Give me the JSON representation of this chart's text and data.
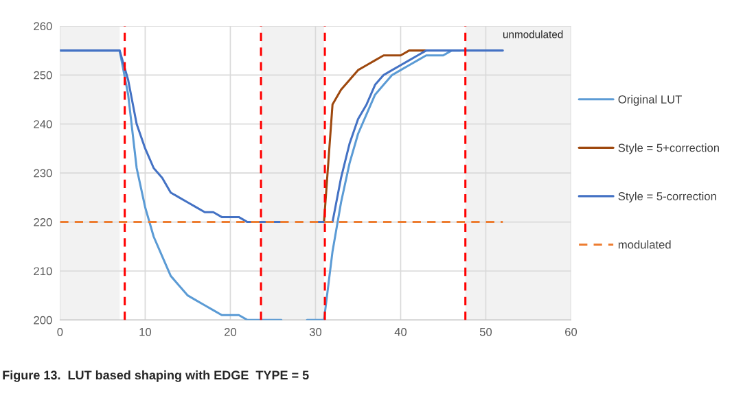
{
  "chart_data": {
    "type": "line",
    "title": "Figure 13.  LUT based shaping with EDGE  TYPE = 5",
    "xlim": [
      0,
      60
    ],
    "xticks": [
      0,
      10,
      20,
      30,
      40,
      50,
      60
    ],
    "ylim": [
      200,
      260
    ],
    "yticks": [
      200,
      210,
      220,
      230,
      240,
      250,
      260
    ],
    "grid": true,
    "legend": "right",
    "marker": "none",
    "series": [
      {
        "name": "Original LUT",
        "color": "#5b9bd5",
        "x": [
          0,
          1,
          2,
          3,
          4,
          5,
          6,
          7,
          8,
          9,
          10,
          11,
          12,
          13,
          14,
          15,
          16,
          17,
          18,
          19,
          20,
          21,
          22,
          23,
          24,
          25,
          26,
          27,
          28,
          29,
          30,
          31,
          32,
          33,
          34,
          35,
          36,
          37,
          38,
          39,
          40,
          41,
          42,
          43,
          44,
          45,
          46,
          47
        ],
        "values": [
          255,
          255,
          255,
          255,
          255,
          255,
          255,
          255,
          246,
          231,
          223,
          217,
          213,
          209,
          207,
          205,
          204,
          203,
          202,
          201,
          201,
          201,
          200,
          200,
          200,
          200,
          200,
          null,
          null,
          200,
          200,
          200,
          214,
          224,
          232,
          238,
          242,
          246,
          248,
          250,
          251,
          252,
          253,
          254,
          254,
          254,
          255,
          255
        ]
      },
      {
        "name": "Style = 5+correction",
        "color": "#9e480e",
        "x": [
          31,
          32,
          33,
          34,
          35,
          36,
          37,
          38,
          39,
          40,
          41,
          42,
          43
        ],
        "values": [
          220,
          244,
          247,
          249,
          251,
          252,
          253,
          254,
          254,
          254,
          255,
          255,
          255
        ]
      },
      {
        "name": "Style = 5-correction",
        "color": "#4472c4",
        "x": [
          0,
          1,
          2,
          3,
          4,
          5,
          6,
          7,
          8,
          9,
          10,
          11,
          12,
          13,
          14,
          15,
          16,
          17,
          18,
          19,
          20,
          21,
          22,
          23,
          24,
          25,
          26,
          27,
          28,
          29,
          30,
          31,
          32,
          33,
          34,
          35,
          36,
          37,
          38,
          39,
          40,
          41,
          42,
          43,
          44,
          45,
          46,
          47,
          48,
          49,
          50,
          51,
          52
        ],
        "values": [
          255,
          255,
          255,
          255,
          255,
          255,
          255,
          255,
          249,
          240,
          235,
          231,
          229,
          226,
          225,
          224,
          223,
          222,
          222,
          221,
          221,
          221,
          220,
          220,
          220,
          220,
          220,
          null,
          null,
          null,
          220,
          220,
          220,
          229,
          236,
          241,
          244,
          248,
          250,
          251,
          252,
          253,
          254,
          255,
          255,
          255,
          255,
          255,
          255,
          255,
          255,
          255,
          255
        ]
      },
      {
        "name": "modulated",
        "color": "#ed7d31",
        "line_style": "dashed",
        "x": [
          0,
          52
        ],
        "values": [
          220,
          220
        ]
      }
    ],
    "ref_lines": [
      {
        "axis": "x",
        "value": 7.6,
        "color": "#ff0000",
        "line_style": "dashed"
      },
      {
        "axis": "x",
        "value": 23.6,
        "color": "#ff0000",
        "line_style": "dashed"
      },
      {
        "axis": "x",
        "value": 31.1,
        "color": "#ff0000",
        "line_style": "dashed"
      },
      {
        "axis": "x",
        "value": 47.6,
        "color": "#ff0000",
        "line_style": "dashed"
      }
    ],
    "bands": [
      {
        "axis": "x",
        "from": 0,
        "to": 7,
        "color": "#f2f2f2"
      },
      {
        "axis": "x",
        "from": 23.6,
        "to": 31,
        "color": "#f2f2f2"
      },
      {
        "axis": "x",
        "from": 47.6,
        "to": 60,
        "color": "#f2f2f2"
      }
    ],
    "annotations": [
      "unmodulated"
    ]
  }
}
